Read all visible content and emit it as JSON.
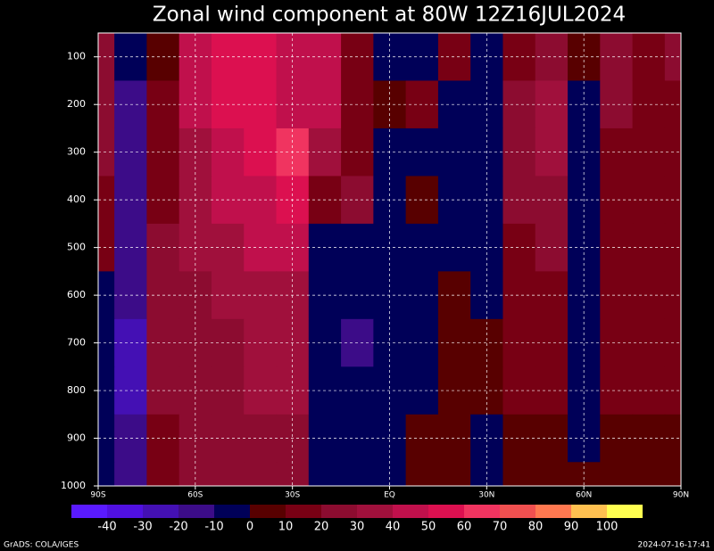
{
  "chart_data": {
    "type": "heatmap",
    "title": "Zonal wind component at 80W  12Z16JUL2024",
    "x": [
      -90,
      -80,
      -70,
      -60,
      -50,
      -40,
      -30,
      -20,
      -10,
      0,
      10,
      20,
      30,
      40,
      50,
      60,
      70,
      80,
      90
    ],
    "y": [
      100,
      200,
      300,
      400,
      500,
      600,
      700,
      800,
      900,
      1000
    ],
    "z": [
      [
        20,
        -10,
        5,
        45,
        55,
        50,
        45,
        40,
        15,
        -10,
        -5,
        10,
        -5,
        15,
        20,
        5,
        20,
        15,
        20
      ],
      [
        20,
        -20,
        10,
        40,
        50,
        50,
        45,
        40,
        15,
        5,
        10,
        -5,
        -5,
        20,
        30,
        -5,
        20,
        15,
        15
      ],
      [
        20,
        -20,
        10,
        35,
        45,
        50,
        60,
        35,
        10,
        -5,
        -5,
        -10,
        -10,
        20,
        30,
        -5,
        15,
        15,
        15
      ],
      [
        15,
        -20,
        15,
        30,
        40,
        45,
        50,
        10,
        20,
        -10,
        5,
        -5,
        -5,
        20,
        25,
        -5,
        15,
        15,
        15
      ],
      [
        10,
        -20,
        20,
        30,
        35,
        40,
        40,
        -5,
        -5,
        -10,
        -10,
        -5,
        -5,
        15,
        20,
        -5,
        15,
        15,
        15
      ],
      [
        -5,
        -20,
        20,
        25,
        30,
        35,
        35,
        -10,
        -10,
        -10,
        -10,
        5,
        -5,
        15,
        15,
        -5,
        10,
        15,
        10
      ],
      [
        -5,
        -25,
        20,
        25,
        25,
        30,
        30,
        -10,
        -15,
        -10,
        -10,
        5,
        5,
        10,
        10,
        -5,
        10,
        10,
        10
      ],
      [
        -5,
        -30,
        20,
        25,
        25,
        30,
        30,
        -10,
        -10,
        -5,
        -10,
        5,
        5,
        10,
        10,
        -5,
        10,
        10,
        10
      ],
      [
        -5,
        -20,
        15,
        20,
        20,
        25,
        25,
        -10,
        -10,
        -5,
        5,
        5,
        -5,
        5,
        5,
        -5,
        5,
        5,
        5
      ],
      [
        -5,
        -15,
        10,
        20,
        20,
        20,
        20,
        -10,
        -10,
        -5,
        5,
        5,
        -5,
        5,
        5,
        5,
        5,
        5,
        5
      ]
    ],
    "xlim": [
      -90,
      90
    ],
    "xticks": [
      {
        "value": -90,
        "label": "90S"
      },
      {
        "value": -60,
        "label": "60S"
      },
      {
        "value": -30,
        "label": "30S"
      },
      {
        "value": 0,
        "label": "EQ"
      },
      {
        "value": 30,
        "label": "30N"
      },
      {
        "value": 60,
        "label": "60N"
      },
      {
        "value": 90,
        "label": "90N"
      }
    ],
    "ylim": [
      50,
      1000
    ],
    "yticks": [
      100,
      200,
      300,
      400,
      500,
      600,
      700,
      800,
      900,
      1000
    ],
    "y_reversed": true,
    "grid": true,
    "levels": [
      -40,
      -30,
      -20,
      -10,
      0,
      10,
      20,
      30,
      40,
      50,
      60,
      70,
      80,
      90,
      100
    ],
    "colors": [
      "#5a1aff",
      "#5010e0",
      "#4410b4",
      "#3c0c88",
      "#000058",
      "#580000",
      "#780014",
      "#8c0c30",
      "#a0103c",
      "#c0104c",
      "#dc1050",
      "#f03460",
      "#f05050",
      "#ff7850",
      "#ffc050",
      "#ffff50"
    ],
    "footer_left": "GrADS: COLA/IGES",
    "footer_right": "2024-07-16-17:41"
  }
}
